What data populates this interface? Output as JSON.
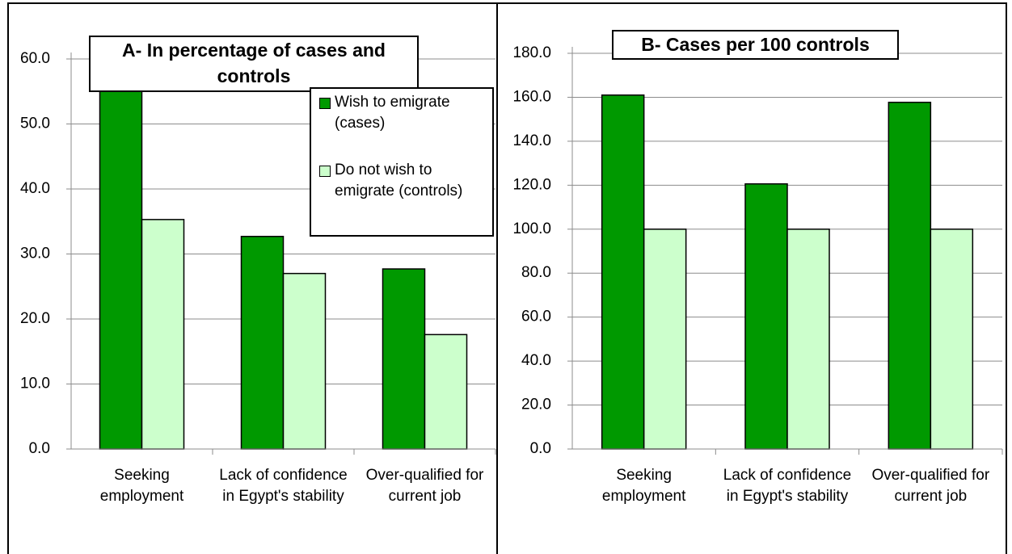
{
  "chart_data": [
    {
      "type": "bar",
      "title": "A- In percentage of cases and controls",
      "categories": [
        "Seeking employment",
        "Lack of confidence in Egypt's stability",
        "Over-qualified for current job"
      ],
      "series": [
        {
          "name": "Wish to emigrate (cases)",
          "color": "#009900",
          "values": [
            56.7,
            32.7,
            27.7
          ]
        },
        {
          "name": "Do not wish to emigrate (controls)",
          "color": "#ccffcc",
          "values": [
            35.3,
            27.0,
            17.6
          ]
        }
      ],
      "ylim": [
        0,
        60
      ],
      "yticks": [
        {
          "value": 0,
          "label": "0.0"
        },
        {
          "value": 10,
          "label": "10.0"
        },
        {
          "value": 20,
          "label": "20.0"
        },
        {
          "value": 30,
          "label": "30.0"
        },
        {
          "value": 40,
          "label": "40.0"
        },
        {
          "value": 50,
          "label": "50.0"
        },
        {
          "value": 60,
          "label": "60.0"
        }
      ],
      "grid": true,
      "legend": "top-right"
    },
    {
      "type": "bar",
      "title": "B- Cases per 100 controls",
      "categories": [
        "Seeking employment",
        "Lack of confidence in Egypt's stability",
        "Over-qualified for current job"
      ],
      "series": [
        {
          "color": "#009900",
          "values": [
            161.0,
            120.6,
            157.7
          ]
        },
        {
          "color": "#ccffcc",
          "values": [
            100,
            100,
            100
          ]
        }
      ],
      "ylim": [
        0,
        180
      ],
      "yticks": [
        {
          "value": 0,
          "label": "0.0"
        },
        {
          "value": 20,
          "label": "20.0"
        },
        {
          "value": 40,
          "label": "40.0"
        },
        {
          "value": 60,
          "label": "60.0"
        },
        {
          "value": 80,
          "label": "80.0"
        },
        {
          "value": 100,
          "label": "100.0"
        },
        {
          "value": 120,
          "label": "120.0"
        },
        {
          "value": 140,
          "label": "140.0"
        },
        {
          "value": 160,
          "label": "160.0"
        },
        {
          "value": 180,
          "label": "180.0"
        }
      ],
      "grid": true
    }
  ]
}
